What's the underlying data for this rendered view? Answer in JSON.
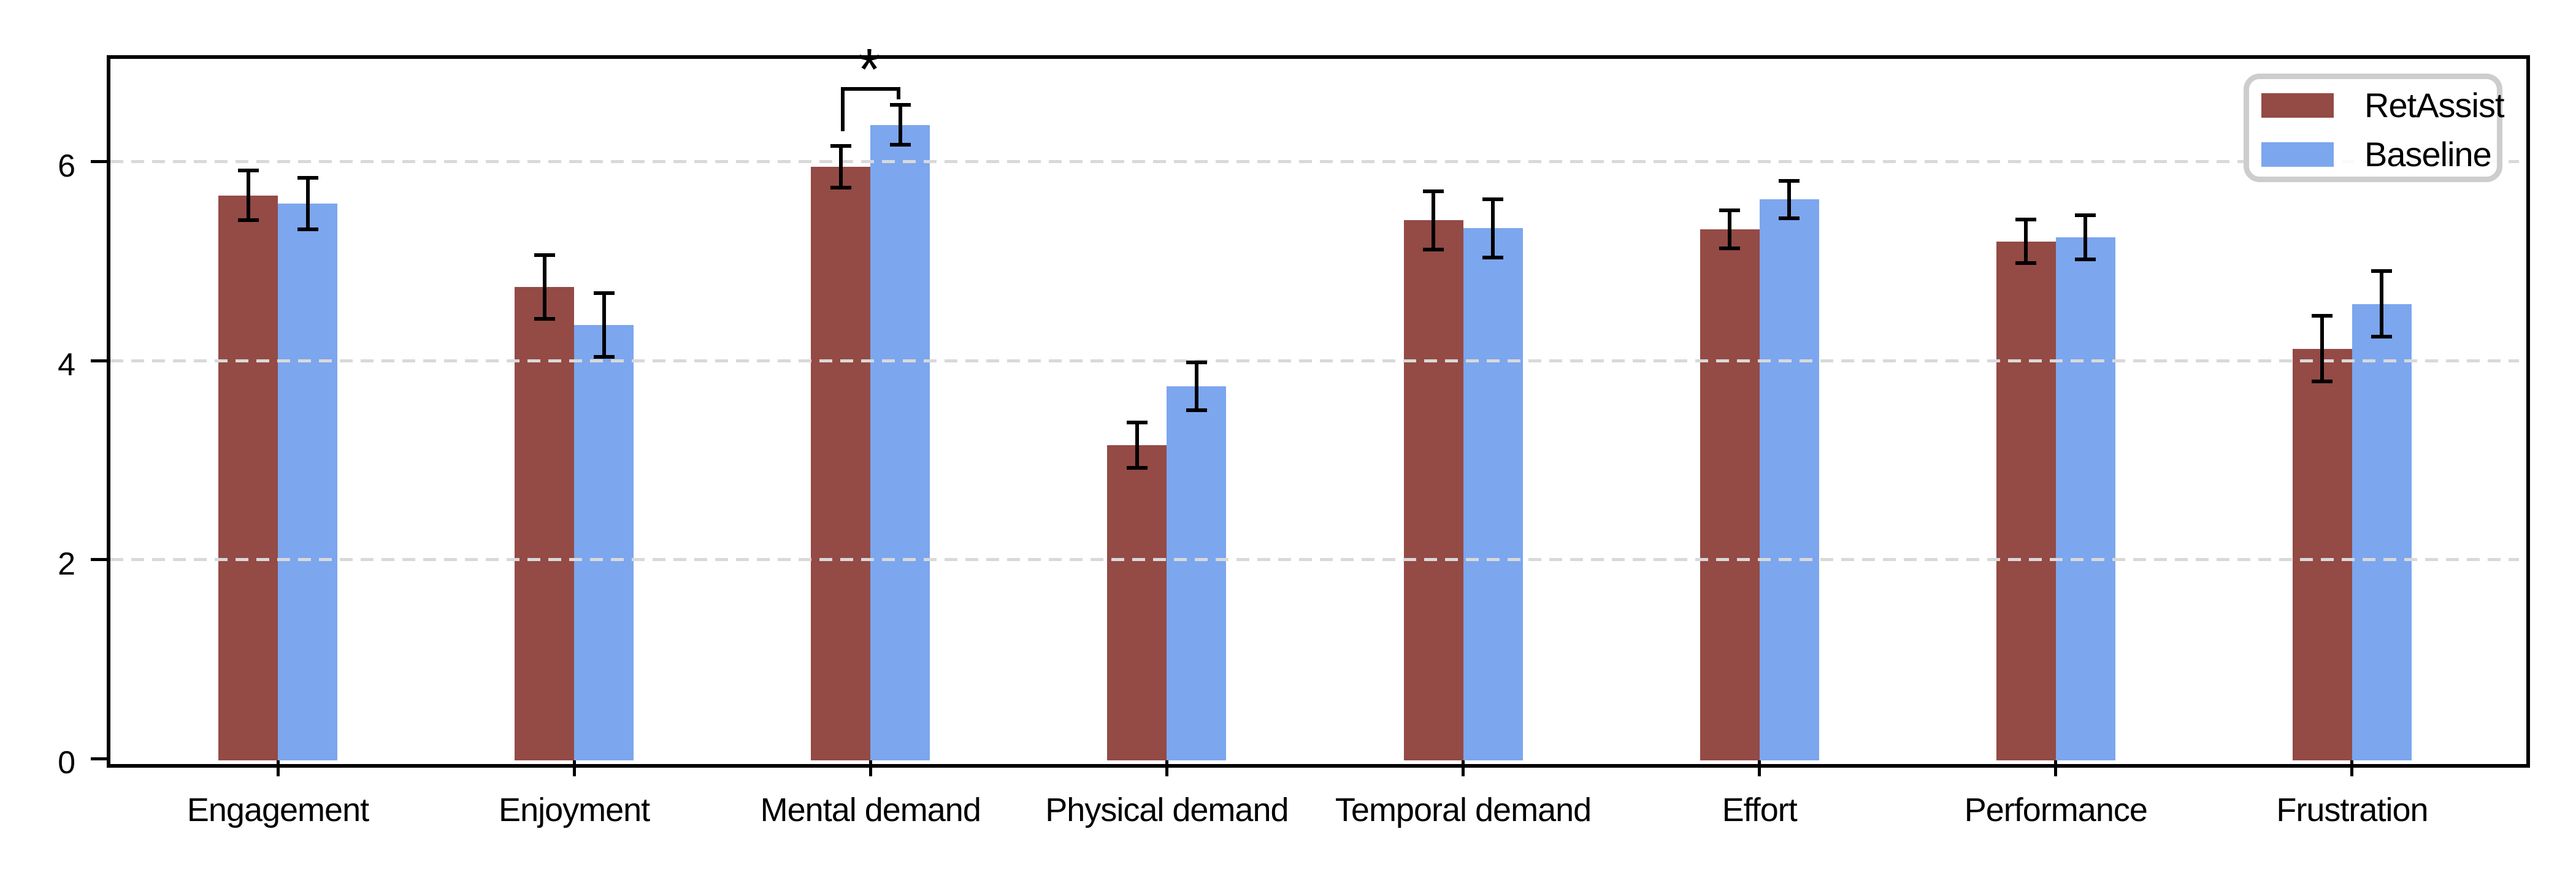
{
  "figure": {
    "background_color": "#ffffff",
    "title": ""
  },
  "chart_data": {
    "type": "bar",
    "title": "",
    "xlabel": "",
    "ylabel": "",
    "categories": [
      "Engagement",
      "Enjoyment",
      "Mental demand",
      "Physical demand",
      "Temporal demand",
      "Effort",
      "Performance",
      "Frustration"
    ],
    "series": [
      {
        "name": "RetAssist",
        "color": "#944a45",
        "values": [
          5.66,
          4.74,
          5.95,
          3.15,
          5.41,
          5.32,
          5.2,
          4.12
        ],
        "errors": [
          0.25,
          0.32,
          0.21,
          0.23,
          0.29,
          0.19,
          0.22,
          0.33
        ]
      },
      {
        "name": "Baseline",
        "color": "#7ca6ee",
        "values": [
          5.58,
          4.36,
          6.37,
          3.74,
          5.33,
          5.62,
          5.24,
          4.57
        ],
        "errors": [
          0.26,
          0.32,
          0.2,
          0.24,
          0.29,
          0.19,
          0.22,
          0.33
        ]
      }
    ],
    "yticks": [
      0,
      2,
      4,
      6
    ],
    "ylim": [
      0,
      7.05
    ],
    "error_bar_color": "#000000",
    "grid": {
      "axis": "y",
      "style": "dashed",
      "color": "#d9d9d9",
      "drawn_above_bars": true
    },
    "legend": {
      "position": "upper right",
      "entries": [
        "RetAssist",
        "Baseline"
      ],
      "frame_color": "#cdcdcd"
    },
    "significance": {
      "category": "Mental demand",
      "label": "*",
      "between": [
        "RetAssist",
        "Baseline"
      ]
    }
  }
}
